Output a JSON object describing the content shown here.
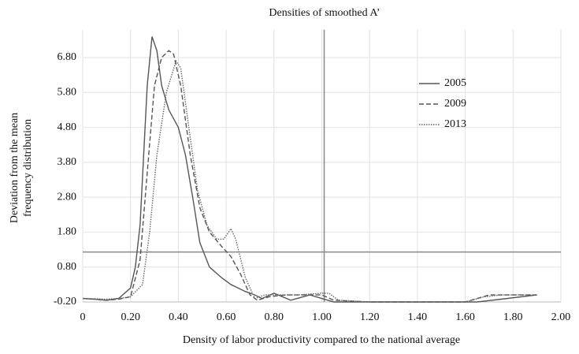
{
  "chart_data": {
    "type": "line",
    "title": "Densities of smoothed A’",
    "xlabel": "Density of labor productivity compared to the national average",
    "ylabel": [
      "Deviation from the mean",
      "frequency distribution"
    ],
    "xlim": [
      0,
      2
    ],
    "ylim": [
      -0.2,
      7.6
    ],
    "xticks": [
      0,
      {
        "value": 0.2,
        "label": "0.20"
      },
      {
        "value": 0.4,
        "label": "0.40"
      },
      {
        "value": 0.6,
        "label": "0.60"
      },
      {
        "value": 0.8,
        "label": "0.80"
      },
      {
        "value": 1.0,
        "label": "1.00"
      },
      {
        "value": 1.2,
        "label": "1.20"
      },
      {
        "value": 1.4,
        "label": "1.40"
      },
      {
        "value": 1.6,
        "label": "1.60"
      },
      {
        "value": 1.8,
        "label": "1.80"
      },
      {
        "value": 2.0,
        "label": "2.00"
      }
    ],
    "yticks": [
      {
        "value": -0.2,
        "label": "-0.20"
      },
      {
        "value": 0.8,
        "label": "0.80"
      },
      {
        "value": 1.8,
        "label": "1.80"
      },
      {
        "value": 2.8,
        "label": "2.80"
      },
      {
        "value": 3.8,
        "label": "3.80"
      },
      {
        "value": 4.8,
        "label": "4.80"
      },
      {
        "value": 5.8,
        "label": "5.80"
      },
      {
        "value": 6.8,
        "label": "6.80"
      }
    ],
    "grid": true,
    "legend": "upper right",
    "vline": 1.01,
    "hline": 1.23,
    "series": [
      {
        "name": "2005",
        "color": "#555555",
        "style": "solid",
        "x": [
          0,
          0.05,
          0.1,
          0.15,
          0.2,
          0.22,
          0.24,
          0.27,
          0.29,
          0.31,
          0.33,
          0.36,
          0.4,
          0.43,
          0.46,
          0.49,
          0.53,
          0.58,
          0.62,
          0.68,
          0.72,
          0.75,
          0.8,
          0.87,
          0.95,
          1.0,
          1.05,
          1.2,
          1.4,
          1.6,
          1.65,
          1.75,
          1.9
        ],
        "values": [
          -0.1,
          -0.12,
          -0.15,
          -0.1,
          0.2,
          0.8,
          2.0,
          6.0,
          7.4,
          7.0,
          6.0,
          5.3,
          4.8,
          4.0,
          2.8,
          1.5,
          0.8,
          0.5,
          0.3,
          0.1,
          0.0,
          -0.1,
          0.05,
          -0.15,
          0.0,
          -0.1,
          -0.2,
          -0.2,
          -0.2,
          -0.2,
          -0.2,
          -0.12,
          0.0
        ]
      },
      {
        "name": "2009",
        "color": "#555555",
        "style": "dashed",
        "x": [
          0,
          0.05,
          0.1,
          0.15,
          0.2,
          0.24,
          0.27,
          0.3,
          0.33,
          0.36,
          0.38,
          0.41,
          0.45,
          0.49,
          0.53,
          0.58,
          0.62,
          0.66,
          0.7,
          0.73,
          0.78,
          0.85,
          1.0,
          1.05,
          1.2,
          1.4,
          1.6,
          1.65,
          1.7,
          1.9
        ],
        "values": [
          -0.1,
          -0.12,
          -0.15,
          -0.12,
          -0.05,
          1.0,
          3.5,
          6.0,
          6.8,
          7.0,
          6.9,
          6.0,
          4.0,
          2.5,
          1.8,
          1.4,
          1.1,
          0.6,
          0.0,
          -0.15,
          -0.05,
          0.0,
          0.0,
          -0.15,
          -0.2,
          -0.2,
          -0.2,
          -0.1,
          0.0,
          0.0
        ]
      },
      {
        "name": "2013",
        "color": "#666666",
        "style": "dotted",
        "x": [
          0,
          0.05,
          0.1,
          0.15,
          0.2,
          0.25,
          0.28,
          0.31,
          0.35,
          0.39,
          0.41,
          0.44,
          0.48,
          0.52,
          0.56,
          0.59,
          0.62,
          0.64,
          0.68,
          0.72,
          0.76,
          0.9,
          1.0,
          1.03,
          1.07,
          1.2,
          1.4,
          1.6,
          1.68,
          1.75,
          1.9
        ],
        "values": [
          -0.1,
          -0.11,
          -0.12,
          -0.1,
          -0.05,
          0.3,
          1.8,
          4.0,
          5.8,
          6.7,
          6.5,
          5.0,
          3.0,
          2.0,
          1.6,
          1.6,
          1.9,
          1.6,
          0.5,
          -0.1,
          0.0,
          0.0,
          0.05,
          0.05,
          -0.15,
          -0.2,
          -0.2,
          -0.2,
          -0.05,
          0.0,
          0.0
        ]
      }
    ]
  }
}
